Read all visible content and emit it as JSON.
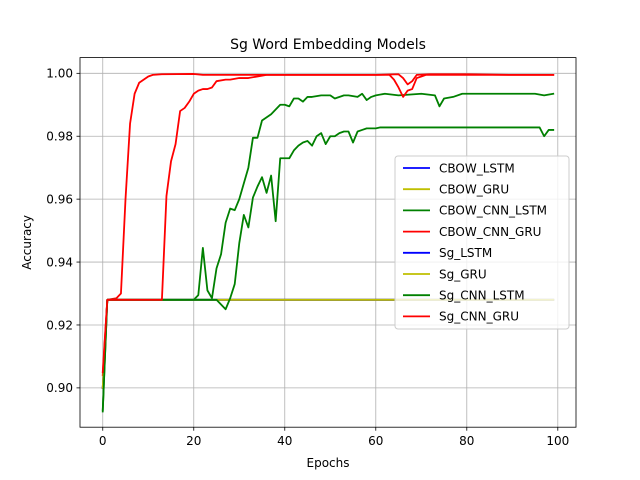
{
  "chart_data": {
    "type": "line",
    "title": "Sg Word Embedding Models",
    "xlabel": "Epochs",
    "ylabel": "Accuracy",
    "xlim": [
      -5,
      104
    ],
    "ylim": [
      0.8875,
      1.005
    ],
    "xticks": [
      0,
      20,
      40,
      60,
      80,
      100
    ],
    "xtick_labels": [
      "0",
      "20",
      "40",
      "60",
      "80",
      "100"
    ],
    "yticks": [
      0.9,
      0.92,
      0.94,
      0.96,
      0.98,
      1.0
    ],
    "ytick_labels": [
      "0.90",
      "0.92",
      "0.94",
      "0.96",
      "0.98",
      "1.00"
    ],
    "grid": true,
    "legend_position": "center-right",
    "series": [
      {
        "name": "CBOW_LSTM",
        "color": "#0000ff",
        "points": [
          [
            0,
            0.9
          ],
          [
            1,
            0.928
          ],
          [
            99,
            0.928
          ]
        ]
      },
      {
        "name": "CBOW_GRU",
        "color": "#bfbf00",
        "points": [
          [
            0,
            0.9
          ],
          [
            1,
            0.928
          ],
          [
            99,
            0.928
          ]
        ]
      },
      {
        "name": "CBOW_CNN_LSTM",
        "color": "#008000",
        "points": [
          [
            0,
            0.893
          ],
          [
            1,
            0.928
          ],
          [
            20,
            0.928
          ],
          [
            21,
            0.9295
          ],
          [
            22,
            0.9445
          ],
          [
            23,
            0.931
          ],
          [
            24,
            0.9285
          ],
          [
            25,
            0.938
          ],
          [
            26,
            0.9425
          ],
          [
            27,
            0.9525
          ],
          [
            28,
            0.957
          ],
          [
            29,
            0.9565
          ],
          [
            30,
            0.96
          ],
          [
            31,
            0.965
          ],
          [
            32,
            0.97
          ],
          [
            33,
            0.9795
          ],
          [
            34,
            0.9795
          ],
          [
            35,
            0.985
          ],
          [
            36,
            0.986
          ],
          [
            37,
            0.987
          ],
          [
            38,
            0.9885
          ],
          [
            39,
            0.99
          ],
          [
            40,
            0.99
          ],
          [
            41,
            0.9895
          ],
          [
            42,
            0.992
          ],
          [
            43,
            0.992
          ],
          [
            44,
            0.991
          ],
          [
            45,
            0.9925
          ],
          [
            46,
            0.9925
          ],
          [
            48,
            0.993
          ],
          [
            50,
            0.993
          ],
          [
            51,
            0.992
          ],
          [
            53,
            0.993
          ],
          [
            54,
            0.993
          ],
          [
            56,
            0.9925
          ],
          [
            57,
            0.9935
          ],
          [
            58,
            0.9915
          ],
          [
            59,
            0.9925
          ],
          [
            60,
            0.993
          ],
          [
            62,
            0.9935
          ],
          [
            65,
            0.993
          ],
          [
            70,
            0.9935
          ],
          [
            73,
            0.993
          ],
          [
            74,
            0.9895
          ],
          [
            75,
            0.992
          ],
          [
            77,
            0.9925
          ],
          [
            79,
            0.9935
          ],
          [
            82,
            0.9935
          ],
          [
            84,
            0.9935
          ],
          [
            90,
            0.9935
          ],
          [
            95,
            0.9935
          ],
          [
            97,
            0.993
          ],
          [
            99,
            0.9935
          ]
        ]
      },
      {
        "name": "CBOW_CNN_GRU",
        "color": "#ff0000",
        "points": [
          [
            0,
            0.904
          ],
          [
            1,
            0.928
          ],
          [
            3,
            0.9285
          ],
          [
            4,
            0.93
          ],
          [
            5,
            0.96
          ],
          [
            6,
            0.984
          ],
          [
            7,
            0.9935
          ],
          [
            8,
            0.997
          ],
          [
            9,
            0.998
          ],
          [
            10,
            0.999
          ],
          [
            11,
            0.9995
          ],
          [
            13,
            0.9997
          ],
          [
            20,
            0.9998
          ],
          [
            22,
            0.9995
          ],
          [
            25,
            0.9995
          ],
          [
            30,
            0.9995
          ],
          [
            40,
            0.9995
          ],
          [
            50,
            0.9995
          ],
          [
            60,
            0.9995
          ],
          [
            65,
            0.9997
          ],
          [
            66,
            0.9985
          ],
          [
            67,
            0.9965
          ],
          [
            68,
            0.9975
          ],
          [
            69,
            0.9995
          ],
          [
            72,
            0.9997
          ],
          [
            80,
            0.9997
          ],
          [
            90,
            0.9995
          ],
          [
            99,
            0.9995
          ]
        ]
      },
      {
        "name": "Sg_LSTM",
        "color": "#0000ff",
        "points": [
          [
            0,
            0.9
          ],
          [
            1,
            0.928
          ],
          [
            99,
            0.928
          ]
        ]
      },
      {
        "name": "Sg_GRU",
        "color": "#bfbf00",
        "points": [
          [
            0,
            0.9
          ],
          [
            1,
            0.928
          ],
          [
            99,
            0.928
          ]
        ]
      },
      {
        "name": "Sg_CNN_LSTM",
        "color": "#008000",
        "points": [
          [
            0,
            0.8925
          ],
          [
            1,
            0.928
          ],
          [
            25,
            0.928
          ],
          [
            26,
            0.9265
          ],
          [
            27,
            0.925
          ],
          [
            28,
            0.9285
          ],
          [
            29,
            0.933
          ],
          [
            30,
            0.946
          ],
          [
            31,
            0.955
          ],
          [
            32,
            0.951
          ],
          [
            33,
            0.9605
          ],
          [
            34,
            0.964
          ],
          [
            35,
            0.967
          ],
          [
            36,
            0.962
          ],
          [
            37,
            0.9675
          ],
          [
            38,
            0.953
          ],
          [
            39,
            0.973
          ],
          [
            41,
            0.973
          ],
          [
            42,
            0.9755
          ],
          [
            43,
            0.977
          ],
          [
            44,
            0.978
          ],
          [
            45,
            0.9785
          ],
          [
            46,
            0.977
          ],
          [
            47,
            0.98
          ],
          [
            48,
            0.981
          ],
          [
            49,
            0.9775
          ],
          [
            50,
            0.98
          ],
          [
            51,
            0.98
          ],
          [
            52,
            0.981
          ],
          [
            53,
            0.9815
          ],
          [
            54,
            0.9815
          ],
          [
            55,
            0.978
          ],
          [
            56,
            0.9815
          ],
          [
            57,
            0.982
          ],
          [
            58,
            0.9825
          ],
          [
            60,
            0.9825
          ],
          [
            61,
            0.9828
          ],
          [
            70,
            0.9828
          ],
          [
            80,
            0.9828
          ],
          [
            90,
            0.9828
          ],
          [
            96,
            0.9828
          ],
          [
            97,
            0.98
          ],
          [
            98,
            0.982
          ],
          [
            99,
            0.982
          ]
        ]
      },
      {
        "name": "Sg_CNN_GRU",
        "color": "#ff0000",
        "points": [
          [
            0,
            0.905
          ],
          [
            1,
            0.928
          ],
          [
            13,
            0.928
          ],
          [
            14,
            0.961
          ],
          [
            15,
            0.972
          ],
          [
            16,
            0.9775
          ],
          [
            17,
            0.988
          ],
          [
            18,
            0.989
          ],
          [
            19,
            0.991
          ],
          [
            20,
            0.9935
          ],
          [
            21,
            0.9945
          ],
          [
            22,
            0.995
          ],
          [
            23,
            0.995
          ],
          [
            24,
            0.9955
          ],
          [
            25,
            0.9975
          ],
          [
            27,
            0.998
          ],
          [
            28,
            0.998
          ],
          [
            30,
            0.9985
          ],
          [
            32,
            0.9985
          ],
          [
            34,
            0.999
          ],
          [
            36,
            0.9995
          ],
          [
            38,
            0.9995
          ],
          [
            40,
            0.9995
          ],
          [
            45,
            0.9995
          ],
          [
            50,
            0.9995
          ],
          [
            55,
            0.9995
          ],
          [
            60,
            0.9995
          ],
          [
            63,
            0.9995
          ],
          [
            64,
            0.998
          ],
          [
            65,
            0.9955
          ],
          [
            66,
            0.9925
          ],
          [
            67,
            0.9945
          ],
          [
            68,
            0.995
          ],
          [
            69,
            0.9985
          ],
          [
            70,
            0.999
          ],
          [
            71,
            0.9995
          ],
          [
            80,
            0.9995
          ],
          [
            90,
            0.9995
          ],
          [
            99,
            0.9995
          ]
        ]
      }
    ]
  }
}
